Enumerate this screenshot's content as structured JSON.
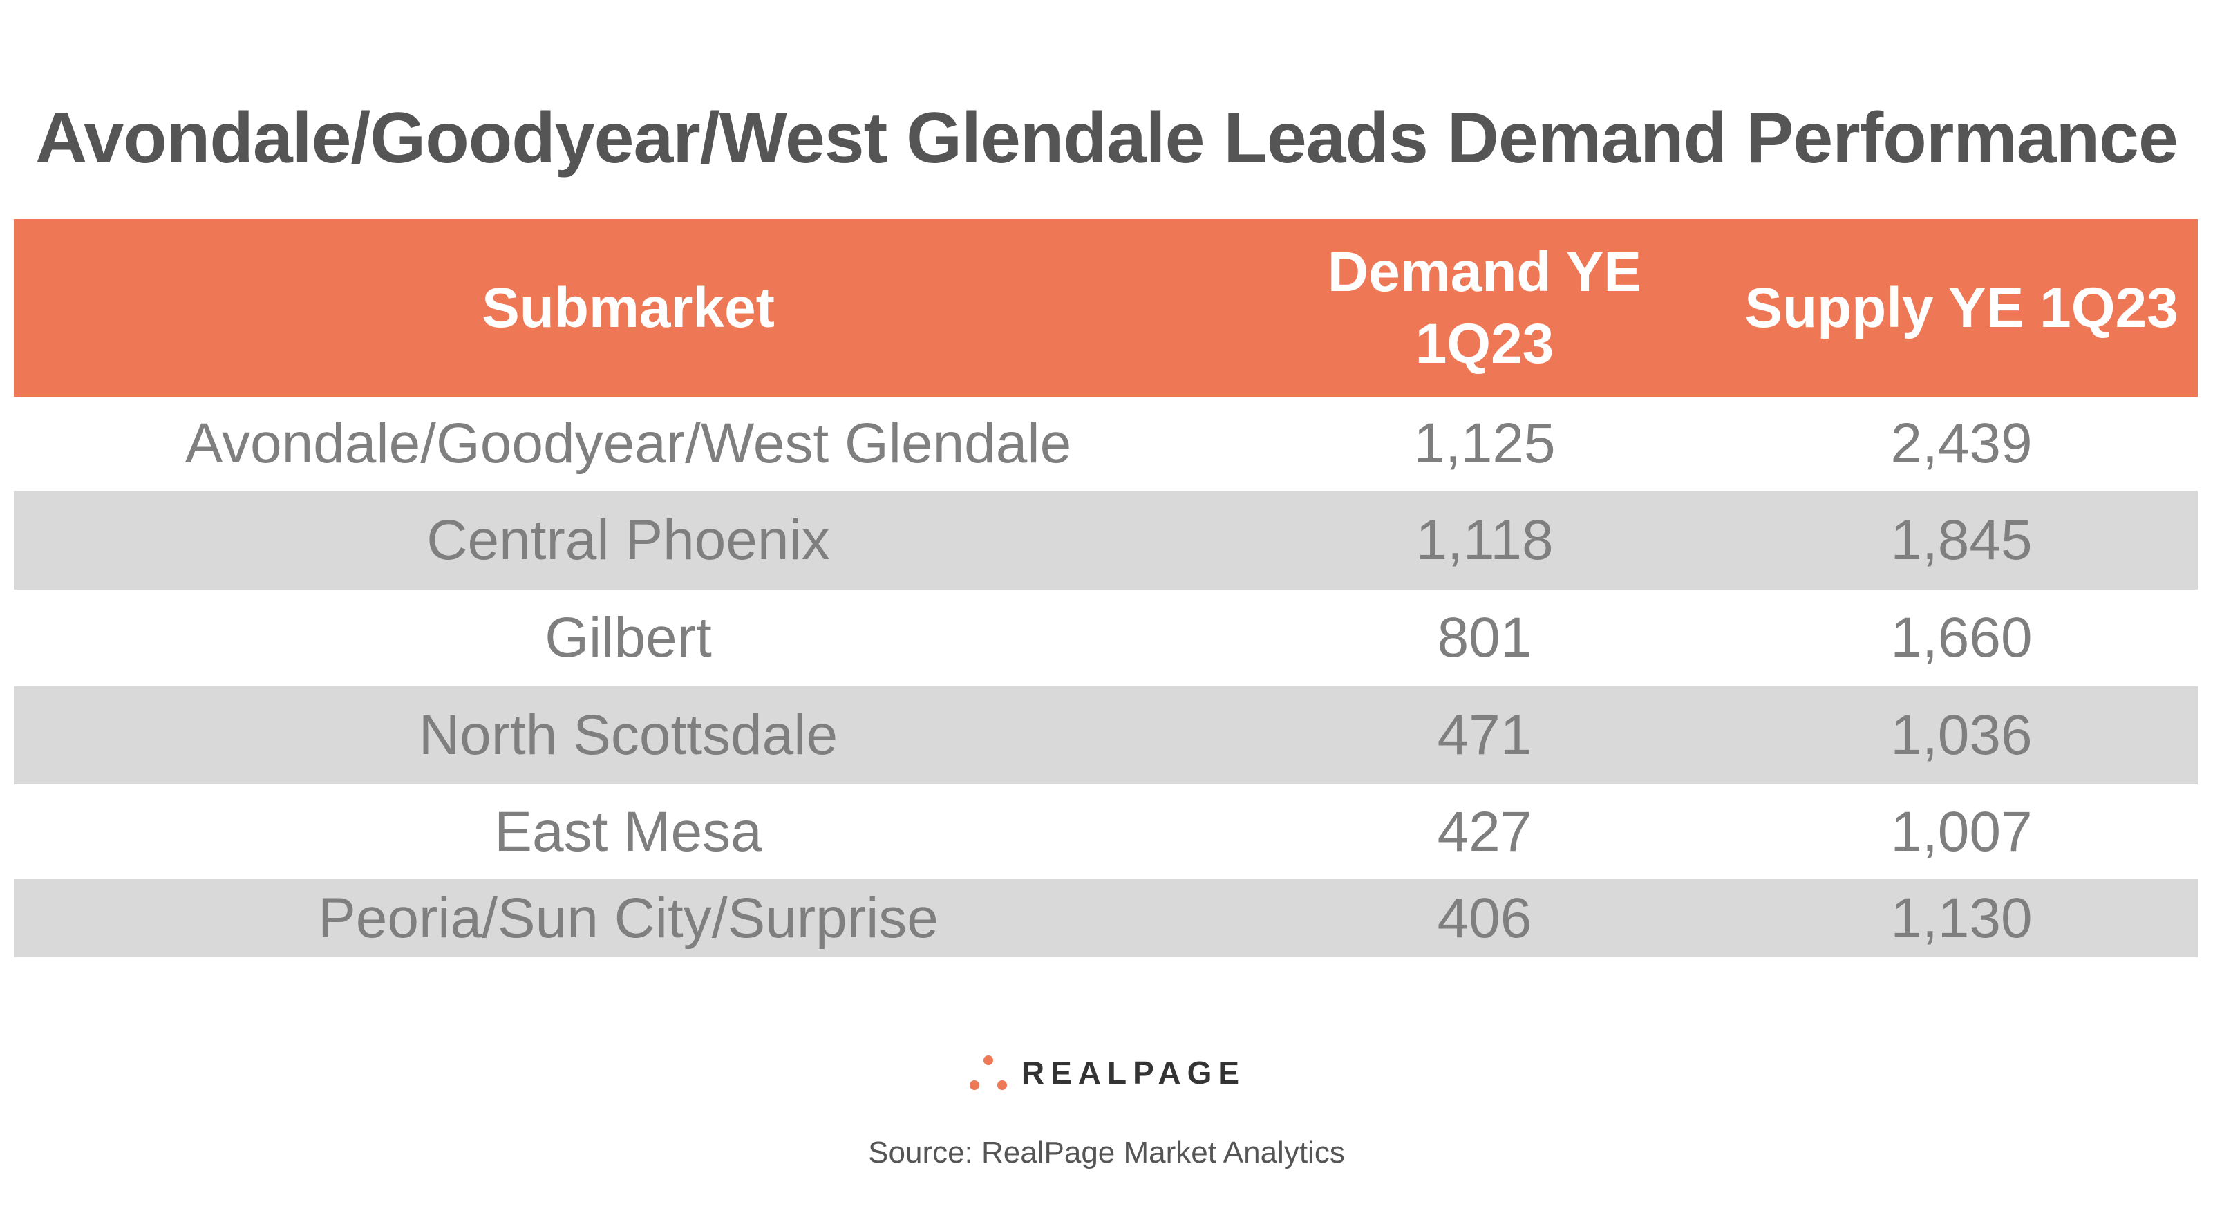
{
  "title": "Avondale/Goodyear/West Glendale Leads Demand Performance",
  "table": {
    "header": [
      "Submarket",
      "Demand YE 1Q23",
      "Supply YE 1Q23"
    ],
    "rows": [
      [
        "Avondale/Goodyear/West Glendale",
        "1,125",
        "2,439"
      ],
      [
        "Central Phoenix",
        "1,118",
        "1,845"
      ],
      [
        "Gilbert",
        "801",
        "1,660"
      ],
      [
        "North Scottsdale",
        "471",
        "1,036"
      ],
      [
        "East Mesa",
        "427",
        "1,007"
      ],
      [
        "Peoria/Sun City/Surprise",
        "406",
        "1,130"
      ]
    ]
  },
  "logo": "REALPAGE",
  "source": "Source: RealPage Market Analytics"
}
